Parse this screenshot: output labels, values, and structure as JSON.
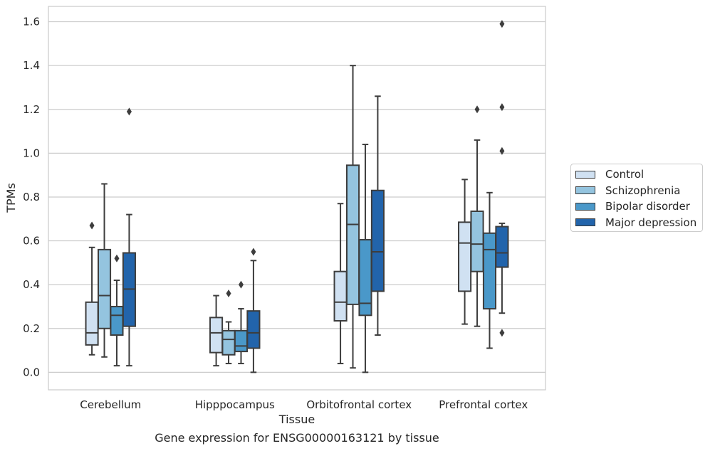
{
  "chart_data": {
    "type": "box",
    "title": "",
    "xlabel": "Tissue",
    "ylabel": "TPMs",
    "caption": "Gene expression for ENSG00000163121 by tissue",
    "ylim": [
      -0.08,
      1.67
    ],
    "yticks": [
      "0.0",
      "0.2",
      "0.4",
      "0.6",
      "0.8",
      "1.0",
      "1.2",
      "1.4",
      "1.6"
    ],
    "categories": [
      "Cerebellum",
      "Hipppocampus",
      "Orbitofrontal cortex",
      "Prefrontal cortex"
    ],
    "grid": "horizontal",
    "legend_position": "right",
    "series": [
      {
        "name": "Control",
        "color": "#d0e1f2",
        "boxes": [
          {
            "whislo": 0.08,
            "q1": 0.125,
            "med": 0.18,
            "q3": 0.32,
            "whishi": 0.57,
            "fliers": [
              0.67
            ]
          },
          {
            "whislo": 0.03,
            "q1": 0.09,
            "med": 0.18,
            "q3": 0.25,
            "whishi": 0.35,
            "fliers": []
          },
          {
            "whislo": 0.04,
            "q1": 0.235,
            "med": 0.32,
            "q3": 0.46,
            "whishi": 0.77,
            "fliers": []
          },
          {
            "whislo": 0.22,
            "q1": 0.37,
            "med": 0.59,
            "q3": 0.685,
            "whishi": 0.88,
            "fliers": []
          }
        ]
      },
      {
        "name": "Schizophrenia",
        "color": "#94c4df",
        "boxes": [
          {
            "whislo": 0.07,
            "q1": 0.2,
            "med": 0.35,
            "q3": 0.56,
            "whishi": 0.86,
            "fliers": []
          },
          {
            "whislo": 0.04,
            "q1": 0.08,
            "med": 0.15,
            "q3": 0.19,
            "whishi": 0.23,
            "fliers": [
              0.36
            ]
          },
          {
            "whislo": 0.02,
            "q1": 0.31,
            "med": 0.675,
            "q3": 0.945,
            "whishi": 1.4,
            "fliers": []
          },
          {
            "whislo": 0.21,
            "q1": 0.46,
            "med": 0.585,
            "q3": 0.735,
            "whishi": 1.06,
            "fliers": [
              1.2
            ]
          }
        ]
      },
      {
        "name": "Bipolar disorder",
        "color": "#4a98c9",
        "boxes": [
          {
            "whislo": 0.03,
            "q1": 0.17,
            "med": 0.26,
            "q3": 0.3,
            "whishi": 0.42,
            "fliers": [
              0.52
            ]
          },
          {
            "whislo": 0.04,
            "q1": 0.095,
            "med": 0.12,
            "q3": 0.19,
            "whishi": 0.29,
            "fliers": [
              0.4
            ]
          },
          {
            "whislo": 0.0,
            "q1": 0.26,
            "med": 0.315,
            "q3": 0.605,
            "whishi": 1.04,
            "fliers": []
          },
          {
            "whislo": 0.11,
            "q1": 0.29,
            "med": 0.56,
            "q3": 0.635,
            "whishi": 0.82,
            "fliers": []
          }
        ]
      },
      {
        "name": "Major depression",
        "color": "#2264ab",
        "boxes": [
          {
            "whislo": 0.03,
            "q1": 0.21,
            "med": 0.38,
            "q3": 0.545,
            "whishi": 0.72,
            "fliers": [
              1.19
            ]
          },
          {
            "whislo": 0.0,
            "q1": 0.11,
            "med": 0.18,
            "q3": 0.28,
            "whishi": 0.51,
            "fliers": [
              0.55
            ]
          },
          {
            "whislo": 0.17,
            "q1": 0.37,
            "med": 0.55,
            "q3": 0.83,
            "whishi": 1.26,
            "fliers": []
          },
          {
            "whislo": 0.27,
            "q1": 0.48,
            "med": 0.545,
            "q3": 0.665,
            "whishi": 0.68,
            "fliers": [
              0.18,
              1.01,
              1.21,
              1.59
            ]
          }
        ]
      }
    ]
  }
}
